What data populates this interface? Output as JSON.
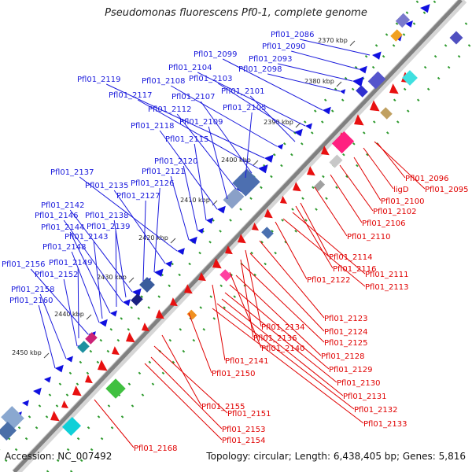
{
  "title": "Pseudomonas fluorescens Pf0-1, complete genome",
  "accession": "Accession: NC_007492",
  "summary": "Topology: circular; Length: 6,438,405 bp; Genes: 5,816",
  "colors": {
    "forward_label": "#1a1adc",
    "reverse_label": "#e00000",
    "forward_gene": "#1010e0",
    "reverse_gene": "#e81010",
    "backbone": "#808080",
    "tick_dots": "#2e9a2e"
  },
  "ticks": [
    "2370 kbp",
    "2380 kbp",
    "2390 kbp",
    "2400 kbp",
    "2410 kbp",
    "2420 kbp",
    "2430 kbp",
    "2440 kbp",
    "2450 kbp"
  ],
  "forward_labels": [
    "Pfl01_2086",
    "Pfl01_2090",
    "Pfl01_2093",
    "Pfl01_2098",
    "Pfl01_2099",
    "Pfl01_2104",
    "Pfl01_2103",
    "Pfl01_2101",
    "Pfl01_2108",
    "Pfl01_2119",
    "Pfl01_2117",
    "Pfl01_2107",
    "Pfl01_2105",
    "Pfl01_2112",
    "Pfl01_2109",
    "Pfl01_2118",
    "Pfl01_2115",
    "Pfl01_2120",
    "Pfl01_2121",
    "Pfl01_2137",
    "Pfl01_2135",
    "Pfl01_2126",
    "Pfl01_2127",
    "Pfl01_2142",
    "Pfl01_2138",
    "Pfl01_2146",
    "Pfl01_2139",
    "Pfl01_2144",
    "Pfl01_2143",
    "Pfl01_2148",
    "Pfl01_2156",
    "Pfl01_2149",
    "Pfl01_2152",
    "Pfl01_2158",
    "Pfl01_2160"
  ],
  "reverse_labels": [
    "Pfl01_2096",
    "Pfl01_2095",
    "ligD",
    "Pfl01_2100",
    "Pfl01_2102",
    "Pfl01_2106",
    "Pfl01_2110",
    "Pfl01_2114",
    "Pfl01_2116",
    "Pfl01_2111",
    "Pfl01_2122",
    "Pfl01_2113",
    "Pfl01_2123",
    "Pfl01_2134",
    "Pfl01_2124",
    "Pfl01_2136",
    "Pfl01_2125",
    "Pfl01_2140",
    "Pfl01_2128",
    "Pfl01_2141",
    "Pfl01_2129",
    "Pfl01_2150",
    "Pfl01_2130",
    "Pfl01_2131",
    "Pfl01_2155",
    "Pfl01_2132",
    "Pfl01_2151",
    "Pfl01_2133",
    "Pfl01_2153",
    "Pfl01_2154",
    "Pfl01_2168"
  ]
}
